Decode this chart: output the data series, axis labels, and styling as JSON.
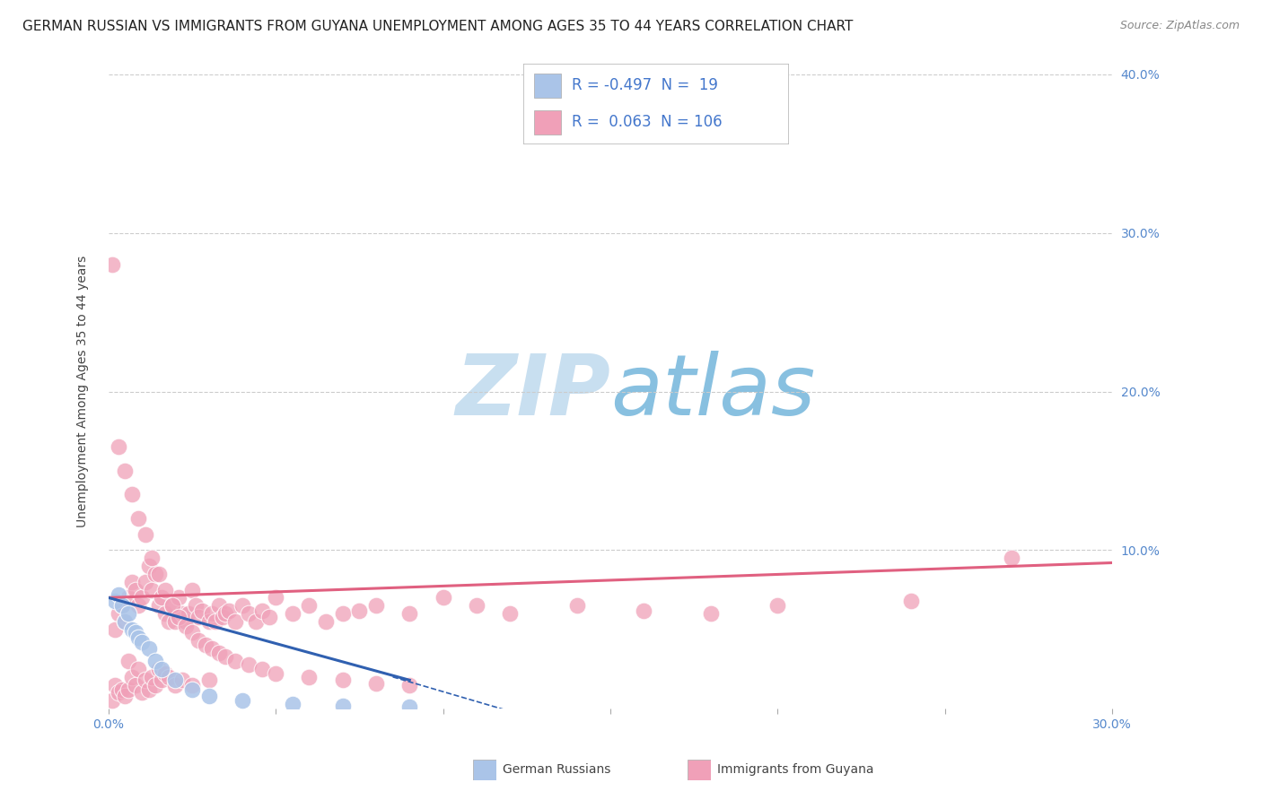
{
  "title": "GERMAN RUSSIAN VS IMMIGRANTS FROM GUYANA UNEMPLOYMENT AMONG AGES 35 TO 44 YEARS CORRELATION CHART",
  "source": "Source: ZipAtlas.com",
  "ylabel": "Unemployment Among Ages 35 to 44 years",
  "xlim": [
    0.0,
    0.3
  ],
  "ylim": [
    0.0,
    0.4
  ],
  "blue_R": -0.497,
  "blue_N": 19,
  "pink_R": 0.063,
  "pink_N": 106,
  "blue_color": "#aac4e8",
  "pink_color": "#f0a0b8",
  "blue_line_color": "#3060b0",
  "pink_line_color": "#e06080",
  "background_color": "#ffffff",
  "grid_color": "#cccccc",
  "watermark_text": "ZIPatlas",
  "watermark_color": "#ddeef8",
  "tick_color": "#5588cc",
  "title_color": "#222222",
  "source_color": "#888888",
  "label_color": "#444444",
  "title_fontsize": 11,
  "axis_label_fontsize": 10,
  "tick_fontsize": 10,
  "legend_fontsize": 12,
  "source_fontsize": 9,
  "blue_x": [
    0.002,
    0.003,
    0.004,
    0.005,
    0.006,
    0.007,
    0.008,
    0.009,
    0.01,
    0.012,
    0.014,
    0.016,
    0.02,
    0.025,
    0.03,
    0.04,
    0.055,
    0.07,
    0.09
  ],
  "blue_y": [
    0.068,
    0.072,
    0.065,
    0.055,
    0.06,
    0.05,
    0.048,
    0.045,
    0.042,
    0.038,
    0.03,
    0.025,
    0.018,
    0.012,
    0.008,
    0.005,
    0.003,
    0.002,
    0.001
  ],
  "pink_x": [
    0.001,
    0.002,
    0.002,
    0.003,
    0.003,
    0.004,
    0.004,
    0.005,
    0.005,
    0.006,
    0.006,
    0.006,
    0.007,
    0.007,
    0.008,
    0.008,
    0.009,
    0.009,
    0.01,
    0.01,
    0.011,
    0.011,
    0.012,
    0.012,
    0.013,
    0.013,
    0.014,
    0.014,
    0.015,
    0.015,
    0.016,
    0.016,
    0.017,
    0.017,
    0.018,
    0.018,
    0.019,
    0.02,
    0.02,
    0.021,
    0.022,
    0.022,
    0.023,
    0.024,
    0.025,
    0.025,
    0.026,
    0.027,
    0.028,
    0.03,
    0.03,
    0.031,
    0.032,
    0.033,
    0.034,
    0.035,
    0.036,
    0.038,
    0.04,
    0.042,
    0.044,
    0.046,
    0.048,
    0.05,
    0.055,
    0.06,
    0.065,
    0.07,
    0.075,
    0.08,
    0.09,
    0.1,
    0.11,
    0.12,
    0.14,
    0.16,
    0.18,
    0.2,
    0.24,
    0.27,
    0.001,
    0.003,
    0.005,
    0.007,
    0.009,
    0.011,
    0.013,
    0.015,
    0.017,
    0.019,
    0.021,
    0.023,
    0.025,
    0.027,
    0.029,
    0.031,
    0.033,
    0.035,
    0.038,
    0.042,
    0.046,
    0.05,
    0.06,
    0.07,
    0.08,
    0.09
  ],
  "pink_y": [
    0.005,
    0.05,
    0.015,
    0.06,
    0.01,
    0.065,
    0.012,
    0.055,
    0.008,
    0.07,
    0.012,
    0.03,
    0.08,
    0.02,
    0.075,
    0.015,
    0.065,
    0.025,
    0.07,
    0.01,
    0.08,
    0.018,
    0.09,
    0.012,
    0.075,
    0.02,
    0.085,
    0.015,
    0.065,
    0.025,
    0.07,
    0.018,
    0.06,
    0.022,
    0.055,
    0.02,
    0.065,
    0.055,
    0.015,
    0.07,
    0.06,
    0.018,
    0.055,
    0.06,
    0.075,
    0.015,
    0.065,
    0.058,
    0.062,
    0.055,
    0.018,
    0.06,
    0.055,
    0.065,
    0.058,
    0.06,
    0.062,
    0.055,
    0.065,
    0.06,
    0.055,
    0.062,
    0.058,
    0.07,
    0.06,
    0.065,
    0.055,
    0.06,
    0.062,
    0.065,
    0.06,
    0.07,
    0.065,
    0.06,
    0.065,
    0.062,
    0.06,
    0.065,
    0.068,
    0.095,
    0.28,
    0.165,
    0.15,
    0.135,
    0.12,
    0.11,
    0.095,
    0.085,
    0.075,
    0.065,
    0.058,
    0.052,
    0.048,
    0.043,
    0.04,
    0.038,
    0.035,
    0.033,
    0.03,
    0.028,
    0.025,
    0.022,
    0.02,
    0.018,
    0.016,
    0.015
  ]
}
